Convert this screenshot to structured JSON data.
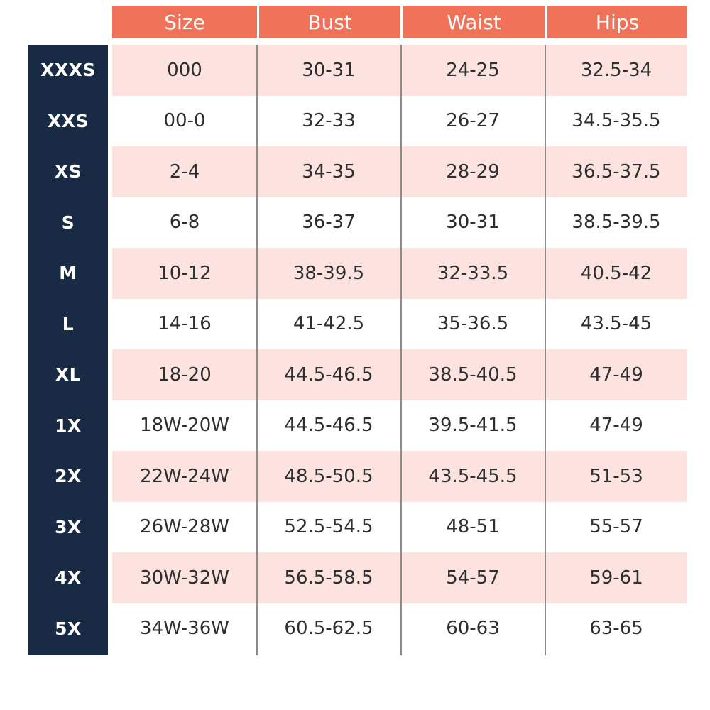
{
  "table": {
    "headers": [
      "Size",
      "Bust",
      "Waist",
      "Hips"
    ],
    "rows": [
      {
        "label": "XXXS",
        "size": "000",
        "bust": "30-31",
        "waist": "24-25",
        "hips": "32.5-34"
      },
      {
        "label": "XXS",
        "size": "00-0",
        "bust": "32-33",
        "waist": "26-27",
        "hips": "34.5-35.5"
      },
      {
        "label": "XS",
        "size": "2-4",
        "bust": "34-35",
        "waist": "28-29",
        "hips": "36.5-37.5"
      },
      {
        "label": "S",
        "size": "6-8",
        "bust": "36-37",
        "waist": "30-31",
        "hips": "38.5-39.5"
      },
      {
        "label": "M",
        "size": "10-12",
        "bust": "38-39.5",
        "waist": "32-33.5",
        "hips": "40.5-42"
      },
      {
        "label": "L",
        "size": "14-16",
        "bust": "41-42.5",
        "waist": "35-36.5",
        "hips": "43.5-45"
      },
      {
        "label": "XL",
        "size": "18-20",
        "bust": "44.5-46.5",
        "waist": "38.5-40.5",
        "hips": "47-49"
      },
      {
        "label": "1X",
        "size": "18W-20W",
        "bust": "44.5-46.5",
        "waist": "39.5-41.5",
        "hips": "47-49"
      },
      {
        "label": "2X",
        "size": "22W-24W",
        "bust": "48.5-50.5",
        "waist": "43.5-45.5",
        "hips": "51-53"
      },
      {
        "label": "3X",
        "size": "26W-28W",
        "bust": "52.5-54.5",
        "waist": "48-51",
        "hips": "55-57"
      },
      {
        "label": "4X",
        "size": "30W-32W",
        "bust": "56.5-58.5",
        "waist": "54-57",
        "hips": "59-61"
      },
      {
        "label": "5X",
        "size": "34W-36W",
        "bust": "60.5-62.5",
        "waist": "60-63",
        "hips": "63-65"
      }
    ]
  },
  "colors": {
    "header_bg": "#ef7259",
    "sidebar_bg": "#192a44",
    "row_shade": "#fce3df"
  }
}
